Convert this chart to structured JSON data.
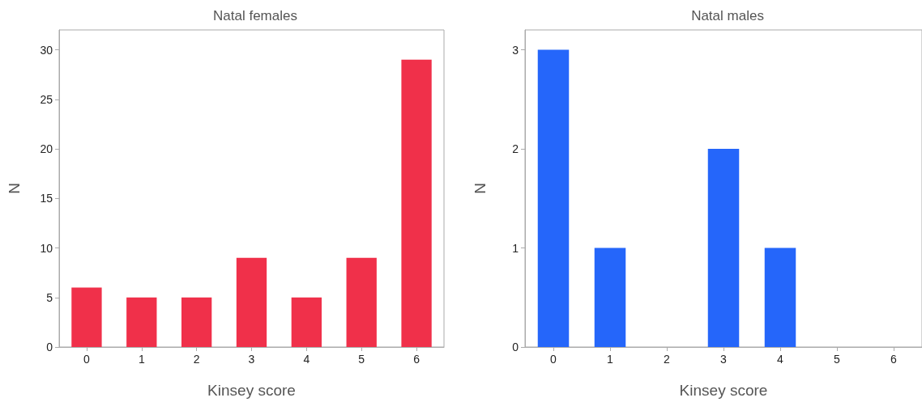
{
  "chart_data": [
    {
      "type": "bar",
      "title": "Natal females",
      "xlabel": "Kinsey score",
      "ylabel": "N",
      "categories": [
        "0",
        "1",
        "2",
        "3",
        "4",
        "5",
        "6"
      ],
      "values": [
        6,
        5,
        5,
        9,
        5,
        9,
        29
      ],
      "color": "#f0304a",
      "ylim": [
        0,
        32
      ],
      "yticks": [
        0,
        5,
        10,
        15,
        20,
        25,
        30
      ],
      "grid": false
    },
    {
      "type": "bar",
      "title": "Natal males",
      "xlabel": "Kinsey score",
      "ylabel": "N",
      "categories": [
        "0",
        "1",
        "2",
        "3",
        "4",
        "5",
        "6"
      ],
      "values": [
        3,
        1,
        0,
        2,
        1,
        0,
        0
      ],
      "color": "#2566fa",
      "ylim": [
        0,
        3.2
      ],
      "yticks": [
        0,
        1,
        2,
        3
      ],
      "grid": false
    }
  ]
}
